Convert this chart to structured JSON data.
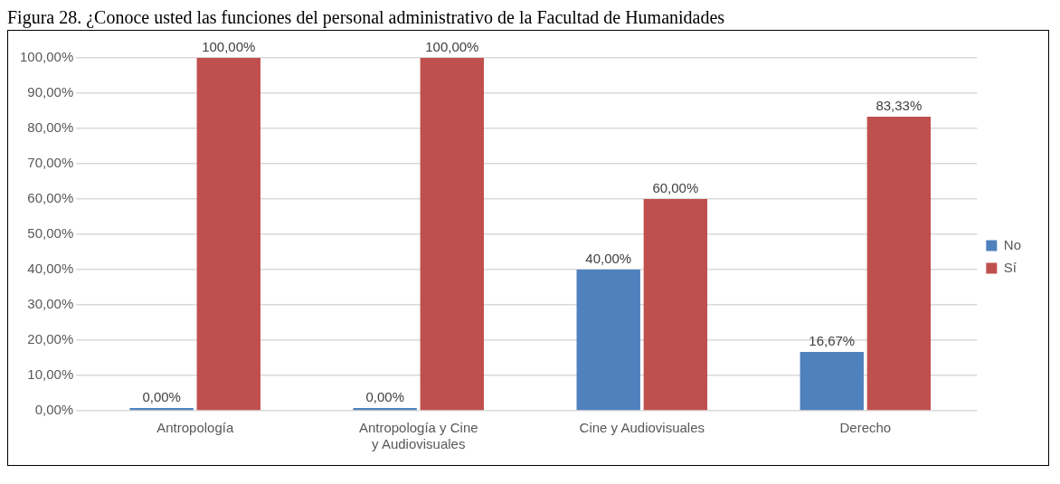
{
  "chart_data": {
    "type": "bar",
    "title": "Figura 28. ¿Conoce usted las funciones del personal administrativo de la Facultad de Humanidades",
    "categories": [
      "Antropología",
      "Antropología y Cine y Audiovisuales",
      "Cine y Audiovisuales",
      "Derecho"
    ],
    "series": [
      {
        "name": "No",
        "color": "#4f81bd",
        "values": [
          0,
          0,
          40,
          16.67
        ],
        "value_labels": [
          "0,00%",
          "0,00%",
          "40,00%",
          "16,67%"
        ]
      },
      {
        "name": "Sí",
        "color": "#c0504d",
        "values": [
          100,
          100,
          60,
          83.33
        ],
        "value_labels": [
          "100,00%",
          "100,00%",
          "60,00%",
          "83,33%"
        ]
      }
    ],
    "ylim": [
      0,
      100
    ],
    "yticks": [
      {
        "value": 0,
        "label": "0,00%"
      },
      {
        "value": 10,
        "label": "10,00%"
      },
      {
        "value": 20,
        "label": "20,00%"
      },
      {
        "value": 30,
        "label": "30,00%"
      },
      {
        "value": 40,
        "label": "40,00%"
      },
      {
        "value": 50,
        "label": "50,00%"
      },
      {
        "value": 60,
        "label": "60,00%"
      },
      {
        "value": 70,
        "label": "70,00%"
      },
      {
        "value": 80,
        "label": "80,00%"
      },
      {
        "value": 90,
        "label": "90,00%"
      },
      {
        "value": 100,
        "label": "100,00%"
      }
    ],
    "grid": "y",
    "legend": "right"
  }
}
